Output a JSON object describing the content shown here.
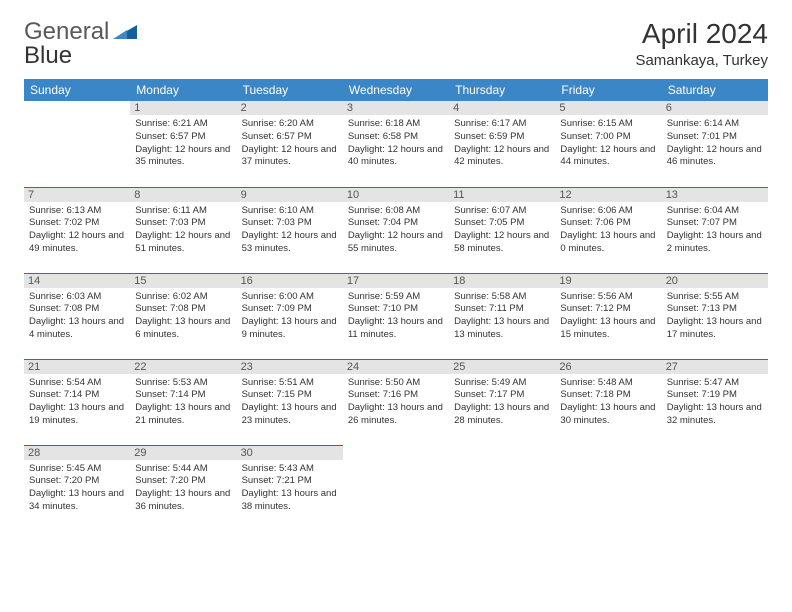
{
  "brand": {
    "general": "General",
    "blue": "Blue"
  },
  "header": {
    "title": "April 2024",
    "location": "Samankaya, Turkey"
  },
  "colors": {
    "header_bg": "#3b86c6",
    "header_fg": "#ffffff",
    "daynum_bg": "#e4e4e4",
    "border": "#2f6fa8",
    "brand_triangle": "#155d9c",
    "brand_text": "#595959"
  },
  "daysOfWeek": [
    "Sunday",
    "Monday",
    "Tuesday",
    "Wednesday",
    "Thursday",
    "Friday",
    "Saturday"
  ],
  "weeks": [
    [
      null,
      {
        "n": "1",
        "sr": "6:21 AM",
        "ss": "6:57 PM",
        "dl": "Daylight: 12 hours and 35 minutes."
      },
      {
        "n": "2",
        "sr": "6:20 AM",
        "ss": "6:57 PM",
        "dl": "Daylight: 12 hours and 37 minutes."
      },
      {
        "n": "3",
        "sr": "6:18 AM",
        "ss": "6:58 PM",
        "dl": "Daylight: 12 hours and 40 minutes."
      },
      {
        "n": "4",
        "sr": "6:17 AM",
        "ss": "6:59 PM",
        "dl": "Daylight: 12 hours and 42 minutes."
      },
      {
        "n": "5",
        "sr": "6:15 AM",
        "ss": "7:00 PM",
        "dl": "Daylight: 12 hours and 44 minutes."
      },
      {
        "n": "6",
        "sr": "6:14 AM",
        "ss": "7:01 PM",
        "dl": "Daylight: 12 hours and 46 minutes."
      }
    ],
    [
      {
        "n": "7",
        "sr": "6:13 AM",
        "ss": "7:02 PM",
        "dl": "Daylight: 12 hours and 49 minutes."
      },
      {
        "n": "8",
        "sr": "6:11 AM",
        "ss": "7:03 PM",
        "dl": "Daylight: 12 hours and 51 minutes."
      },
      {
        "n": "9",
        "sr": "6:10 AM",
        "ss": "7:03 PM",
        "dl": "Daylight: 12 hours and 53 minutes."
      },
      {
        "n": "10",
        "sr": "6:08 AM",
        "ss": "7:04 PM",
        "dl": "Daylight: 12 hours and 55 minutes."
      },
      {
        "n": "11",
        "sr": "6:07 AM",
        "ss": "7:05 PM",
        "dl": "Daylight: 12 hours and 58 minutes."
      },
      {
        "n": "12",
        "sr": "6:06 AM",
        "ss": "7:06 PM",
        "dl": "Daylight: 13 hours and 0 minutes."
      },
      {
        "n": "13",
        "sr": "6:04 AM",
        "ss": "7:07 PM",
        "dl": "Daylight: 13 hours and 2 minutes."
      }
    ],
    [
      {
        "n": "14",
        "sr": "6:03 AM",
        "ss": "7:08 PM",
        "dl": "Daylight: 13 hours and 4 minutes."
      },
      {
        "n": "15",
        "sr": "6:02 AM",
        "ss": "7:08 PM",
        "dl": "Daylight: 13 hours and 6 minutes."
      },
      {
        "n": "16",
        "sr": "6:00 AM",
        "ss": "7:09 PM",
        "dl": "Daylight: 13 hours and 9 minutes."
      },
      {
        "n": "17",
        "sr": "5:59 AM",
        "ss": "7:10 PM",
        "dl": "Daylight: 13 hours and 11 minutes."
      },
      {
        "n": "18",
        "sr": "5:58 AM",
        "ss": "7:11 PM",
        "dl": "Daylight: 13 hours and 13 minutes."
      },
      {
        "n": "19",
        "sr": "5:56 AM",
        "ss": "7:12 PM",
        "dl": "Daylight: 13 hours and 15 minutes."
      },
      {
        "n": "20",
        "sr": "5:55 AM",
        "ss": "7:13 PM",
        "dl": "Daylight: 13 hours and 17 minutes."
      }
    ],
    [
      {
        "n": "21",
        "sr": "5:54 AM",
        "ss": "7:14 PM",
        "dl": "Daylight: 13 hours and 19 minutes."
      },
      {
        "n": "22",
        "sr": "5:53 AM",
        "ss": "7:14 PM",
        "dl": "Daylight: 13 hours and 21 minutes."
      },
      {
        "n": "23",
        "sr": "5:51 AM",
        "ss": "7:15 PM",
        "dl": "Daylight: 13 hours and 23 minutes."
      },
      {
        "n": "24",
        "sr": "5:50 AM",
        "ss": "7:16 PM",
        "dl": "Daylight: 13 hours and 26 minutes."
      },
      {
        "n": "25",
        "sr": "5:49 AM",
        "ss": "7:17 PM",
        "dl": "Daylight: 13 hours and 28 minutes."
      },
      {
        "n": "26",
        "sr": "5:48 AM",
        "ss": "7:18 PM",
        "dl": "Daylight: 13 hours and 30 minutes."
      },
      {
        "n": "27",
        "sr": "5:47 AM",
        "ss": "7:19 PM",
        "dl": "Daylight: 13 hours and 32 minutes."
      }
    ],
    [
      {
        "n": "28",
        "sr": "5:45 AM",
        "ss": "7:20 PM",
        "dl": "Daylight: 13 hours and 34 minutes."
      },
      {
        "n": "29",
        "sr": "5:44 AM",
        "ss": "7:20 PM",
        "dl": "Daylight: 13 hours and 36 minutes."
      },
      {
        "n": "30",
        "sr": "5:43 AM",
        "ss": "7:21 PM",
        "dl": "Daylight: 13 hours and 38 minutes."
      },
      null,
      null,
      null,
      null
    ]
  ]
}
